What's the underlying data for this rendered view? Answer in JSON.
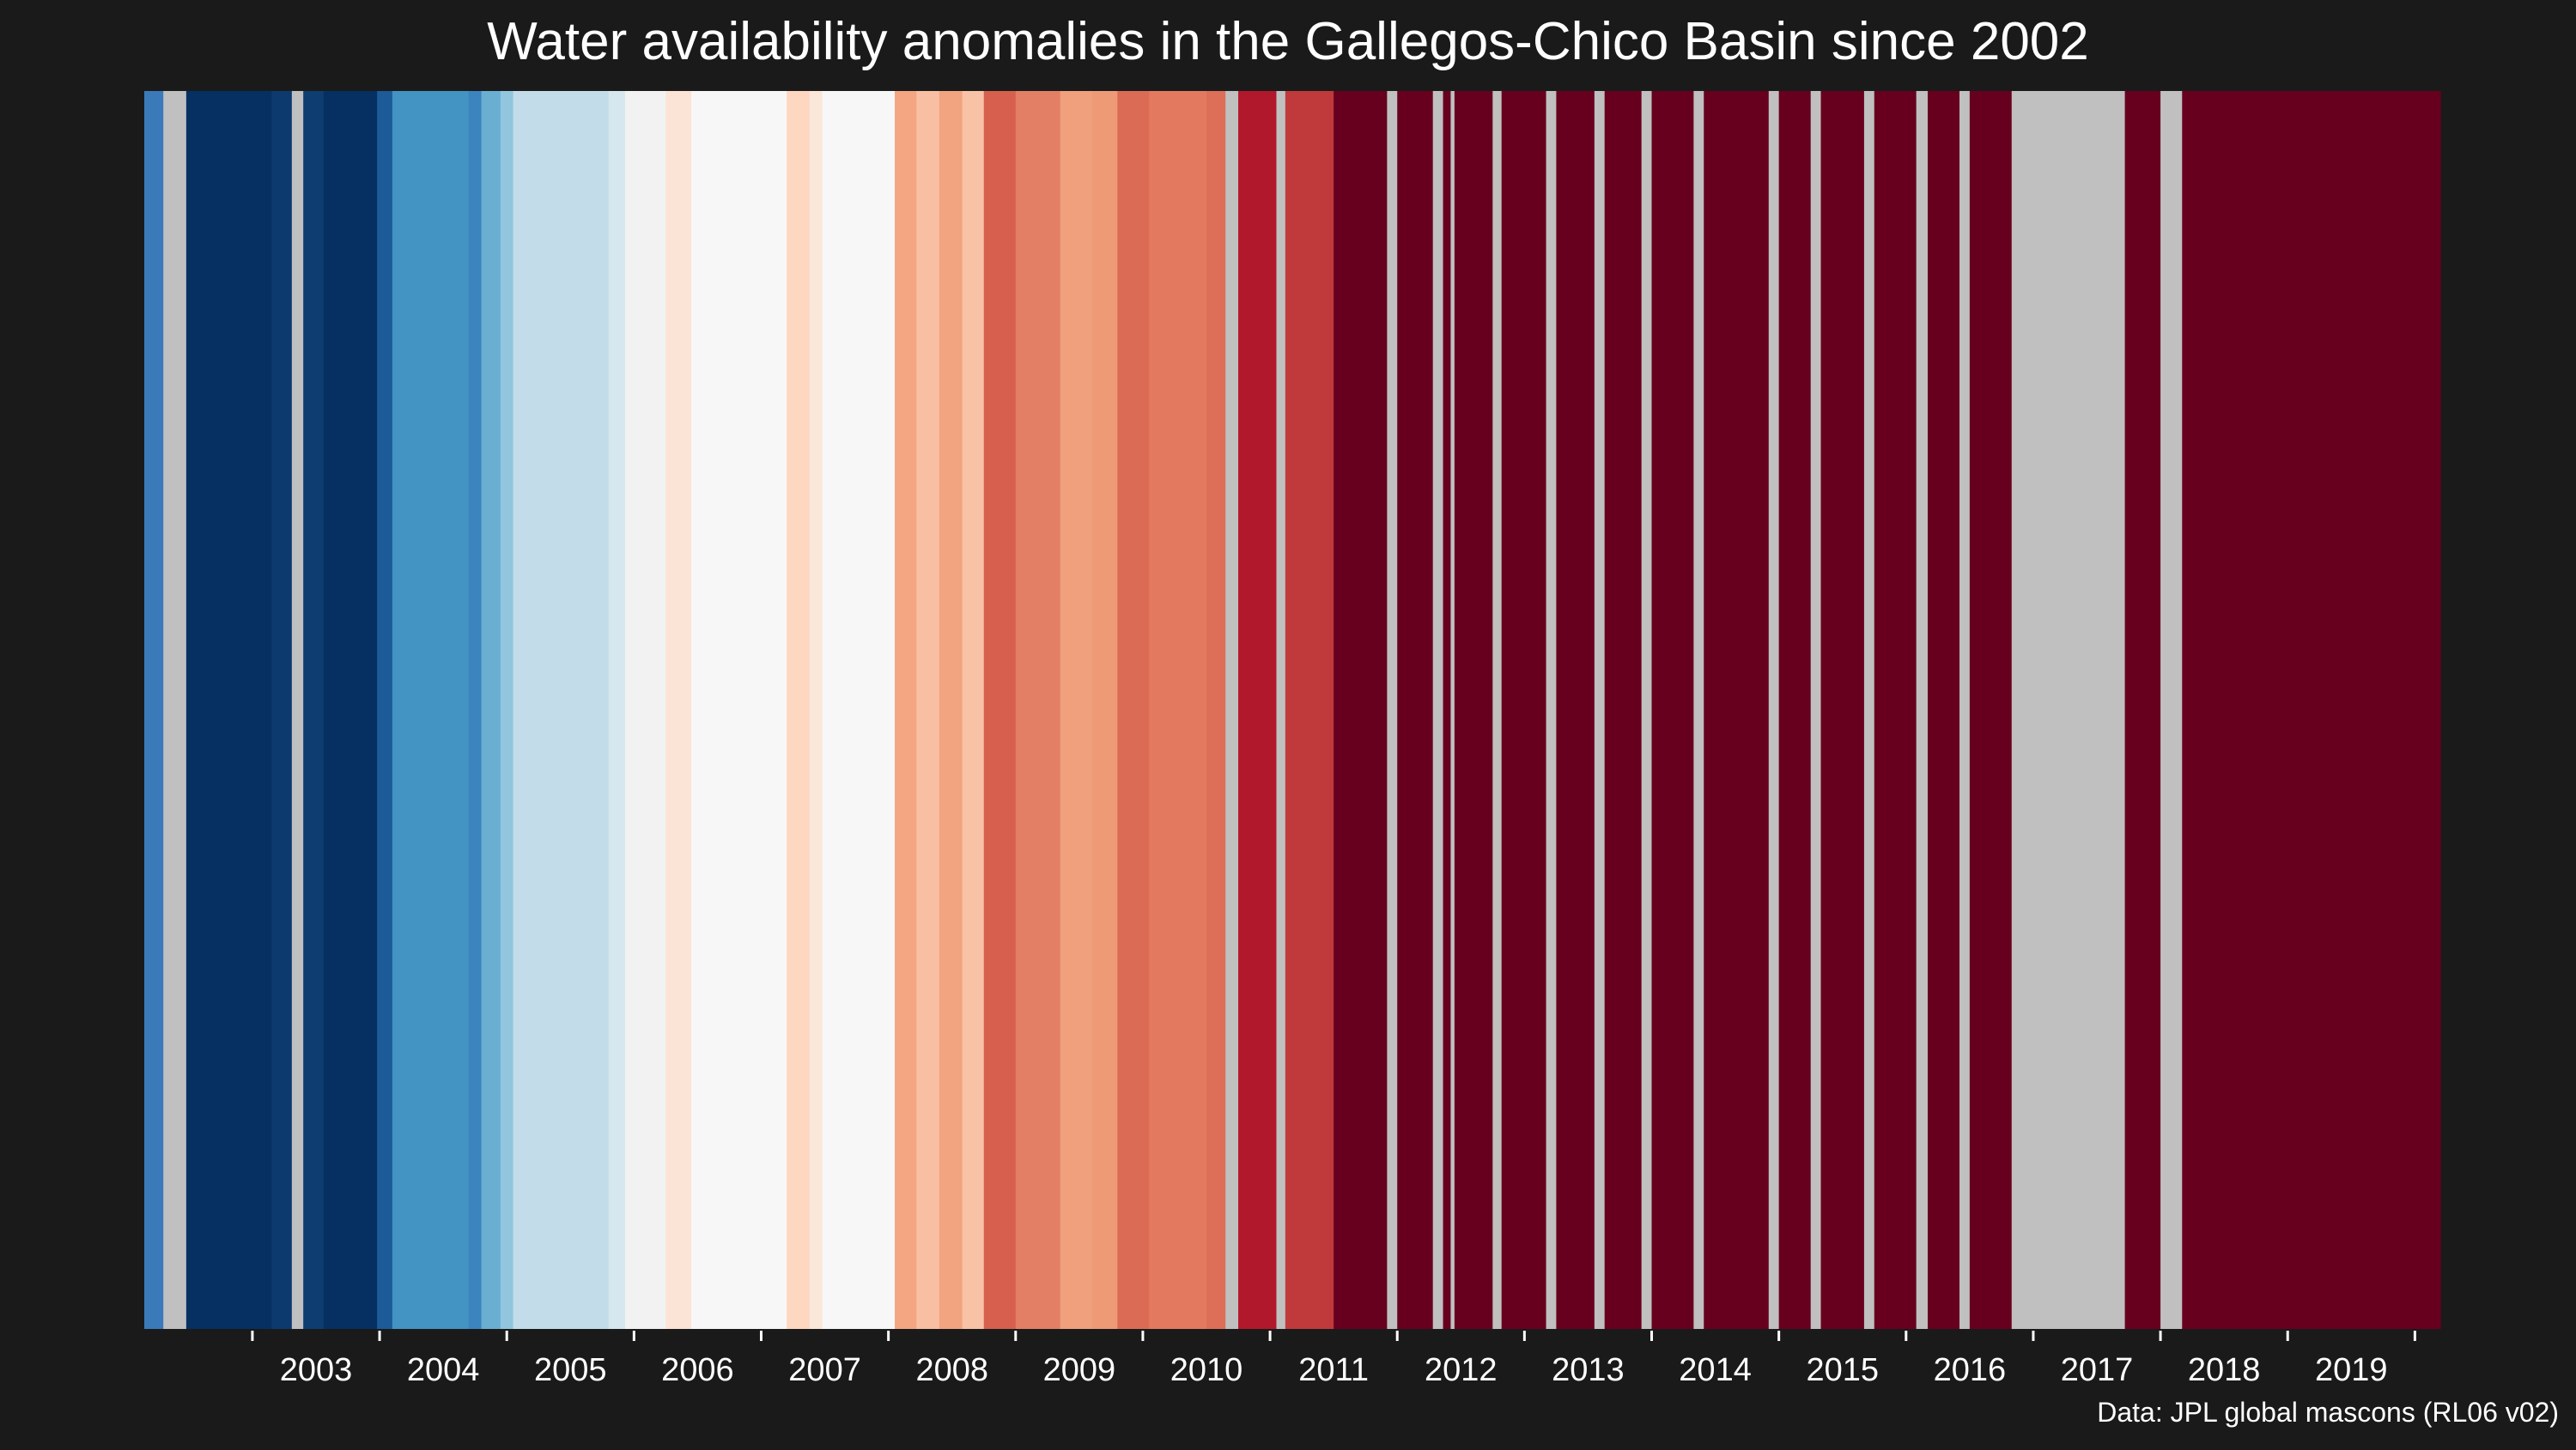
{
  "chart_data": {
    "type": "heatmap",
    "title": "Water availability anomalies in the Gallegos-Chico Basin since 2002",
    "xlabel": "",
    "ylabel": "",
    "xlim": [
      2002.15,
      2020.2
    ],
    "x_tick_labels": [
      "2003",
      "2004",
      "2005",
      "2006",
      "2007",
      "2008",
      "2009",
      "2010",
      "2011",
      "2012",
      "2013",
      "2014",
      "2015",
      "2016",
      "2017",
      "2018",
      "2019"
    ],
    "missing_color": "#c0c0c0",
    "stripes": [
      {
        "start": 2002.15,
        "end": 2002.3,
        "color": "#3b7ab8"
      },
      {
        "start": 2002.3,
        "end": 2002.48,
        "color": "#c0c0c0"
      },
      {
        "start": 2002.48,
        "end": 2003.15,
        "color": "#053061"
      },
      {
        "start": 2003.15,
        "end": 2003.31,
        "color": "#0c3a6e"
      },
      {
        "start": 2003.31,
        "end": 2003.4,
        "color": "#c0c0c0"
      },
      {
        "start": 2003.4,
        "end": 2003.56,
        "color": "#0e3d72"
      },
      {
        "start": 2003.56,
        "end": 2003.98,
        "color": "#053061"
      },
      {
        "start": 2003.98,
        "end": 2004.1,
        "color": "#1c5a98"
      },
      {
        "start": 2004.1,
        "end": 2004.7,
        "color": "#4393c3"
      },
      {
        "start": 2004.7,
        "end": 2004.8,
        "color": "#3b84bd"
      },
      {
        "start": 2004.8,
        "end": 2004.95,
        "color": "#6aaed2"
      },
      {
        "start": 2004.95,
        "end": 2005.05,
        "color": "#92c5de"
      },
      {
        "start": 2005.05,
        "end": 2005.8,
        "color": "#c2dcea"
      },
      {
        "start": 2005.8,
        "end": 2005.93,
        "color": "#d6e7f0"
      },
      {
        "start": 2005.93,
        "end": 2006.25,
        "color": "#f2f2f2"
      },
      {
        "start": 2006.25,
        "end": 2006.45,
        "color": "#fbe3d6"
      },
      {
        "start": 2006.45,
        "end": 2007.2,
        "color": "#f7f7f7"
      },
      {
        "start": 2007.2,
        "end": 2007.38,
        "color": "#fdd7c0"
      },
      {
        "start": 2007.38,
        "end": 2007.48,
        "color": "#fbe6da"
      },
      {
        "start": 2007.48,
        "end": 2008.05,
        "color": "#f7f7f7"
      },
      {
        "start": 2008.05,
        "end": 2008.22,
        "color": "#f4a582"
      },
      {
        "start": 2008.22,
        "end": 2008.4,
        "color": "#f8bfa2"
      },
      {
        "start": 2008.4,
        "end": 2008.58,
        "color": "#f2a37f"
      },
      {
        "start": 2008.58,
        "end": 2008.75,
        "color": "#f8c2a6"
      },
      {
        "start": 2008.75,
        "end": 2009.0,
        "color": "#d6604d"
      },
      {
        "start": 2009.0,
        "end": 2009.35,
        "color": "#e27f64"
      },
      {
        "start": 2009.35,
        "end": 2009.6,
        "color": "#f0a07c"
      },
      {
        "start": 2009.6,
        "end": 2009.8,
        "color": "#ee9a77"
      },
      {
        "start": 2009.8,
        "end": 2010.05,
        "color": "#dc6b55"
      },
      {
        "start": 2010.05,
        "end": 2010.5,
        "color": "#e37a60"
      },
      {
        "start": 2010.5,
        "end": 2010.65,
        "color": "#dd6f58"
      },
      {
        "start": 2010.65,
        "end": 2010.75,
        "color": "#c0c0c0"
      },
      {
        "start": 2010.75,
        "end": 2011.05,
        "color": "#b2182b"
      },
      {
        "start": 2011.05,
        "end": 2011.12,
        "color": "#c0c0c0"
      },
      {
        "start": 2011.12,
        "end": 2011.5,
        "color": "#c03a3c"
      },
      {
        "start": 2011.5,
        "end": 2011.92,
        "color": "#67001f"
      },
      {
        "start": 2011.92,
        "end": 2012.0,
        "color": "#c0c0c0"
      },
      {
        "start": 2012.0,
        "end": 2012.28,
        "color": "#67001f"
      },
      {
        "start": 2012.28,
        "end": 2012.36,
        "color": "#c0c0c0"
      },
      {
        "start": 2012.36,
        "end": 2012.42,
        "color": "#67001f"
      },
      {
        "start": 2012.42,
        "end": 2012.45,
        "color": "#c0c0c0"
      },
      {
        "start": 2012.45,
        "end": 2012.75,
        "color": "#67001f"
      },
      {
        "start": 2012.75,
        "end": 2012.82,
        "color": "#c0c0c0"
      },
      {
        "start": 2012.82,
        "end": 2013.17,
        "color": "#67001f"
      },
      {
        "start": 2013.17,
        "end": 2013.25,
        "color": "#c0c0c0"
      },
      {
        "start": 2013.25,
        "end": 2013.55,
        "color": "#67001f"
      },
      {
        "start": 2013.55,
        "end": 2013.63,
        "color": "#c0c0c0"
      },
      {
        "start": 2013.63,
        "end": 2013.92,
        "color": "#67001f"
      },
      {
        "start": 2013.92,
        "end": 2014.0,
        "color": "#c0c0c0"
      },
      {
        "start": 2014.0,
        "end": 2014.33,
        "color": "#67001f"
      },
      {
        "start": 2014.33,
        "end": 2014.41,
        "color": "#c0c0c0"
      },
      {
        "start": 2014.41,
        "end": 2014.92,
        "color": "#67001f"
      },
      {
        "start": 2014.92,
        "end": 2015.0,
        "color": "#c0c0c0"
      },
      {
        "start": 2015.0,
        "end": 2015.25,
        "color": "#67001f"
      },
      {
        "start": 2015.25,
        "end": 2015.33,
        "color": "#c0c0c0"
      },
      {
        "start": 2015.33,
        "end": 2015.67,
        "color": "#67001f"
      },
      {
        "start": 2015.67,
        "end": 2015.75,
        "color": "#c0c0c0"
      },
      {
        "start": 2015.75,
        "end": 2016.08,
        "color": "#67001f"
      },
      {
        "start": 2016.08,
        "end": 2016.17,
        "color": "#c0c0c0"
      },
      {
        "start": 2016.17,
        "end": 2016.42,
        "color": "#67001f"
      },
      {
        "start": 2016.42,
        "end": 2016.5,
        "color": "#c0c0c0"
      },
      {
        "start": 2016.5,
        "end": 2016.83,
        "color": "#67001f"
      },
      {
        "start": 2016.83,
        "end": 2017.72,
        "color": "#c0c0c0"
      },
      {
        "start": 2017.72,
        "end": 2018.0,
        "color": "#67001f"
      },
      {
        "start": 2018.0,
        "end": 2018.17,
        "color": "#c0c0c0"
      },
      {
        "start": 2018.17,
        "end": 2020.2,
        "color": "#67001f"
      }
    ]
  },
  "source_note": "Data: JPL global mascons (RL06 v02)"
}
